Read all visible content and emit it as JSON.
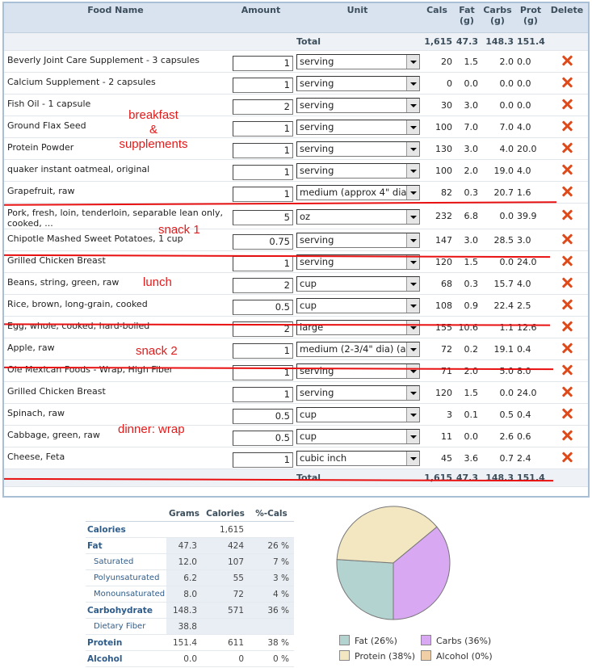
{
  "columns": {
    "food_name": "Food Name",
    "amount": "Amount",
    "unit": "Unit",
    "cals": "Cals",
    "fat": "Fat",
    "fat_unit": "(g)",
    "carbs": "Carbs",
    "carbs_unit": "(g)",
    "prot": "Prot",
    "prot_unit": "(g)",
    "delete": "Delete"
  },
  "total_top": {
    "label": "Total",
    "cals": "1,615",
    "fat": "47.3",
    "carbs": "148.3",
    "prot": "151.4"
  },
  "rows": [
    {
      "name": "Beverly Joint Care Supplement - 3 capsules",
      "amount": "1",
      "unit": "serving",
      "cals": "20",
      "fat": "1.5",
      "carbs": "2.0",
      "prot": "0.0"
    },
    {
      "name": "Calcium Supplement - 2 capsules",
      "amount": "1",
      "unit": "serving",
      "cals": "0",
      "fat": "0.0",
      "carbs": "0.0",
      "prot": "0.0"
    },
    {
      "name": "Fish Oil - 1 capsule",
      "amount": "2",
      "unit": "serving",
      "cals": "30",
      "fat": "3.0",
      "carbs": "0.0",
      "prot": "0.0"
    },
    {
      "name": "Ground Flax Seed",
      "amount": "1",
      "unit": "serving",
      "cals": "100",
      "fat": "7.0",
      "carbs": "7.0",
      "prot": "4.0"
    },
    {
      "name": "Protein Powder",
      "amount": "1",
      "unit": "serving",
      "cals": "130",
      "fat": "3.0",
      "carbs": "4.0",
      "prot": "20.0"
    },
    {
      "name": "quaker instant oatmeal, original",
      "amount": "1",
      "unit": "serving",
      "cals": "100",
      "fat": "2.0",
      "carbs": "19.0",
      "prot": "4.0"
    },
    {
      "name": "Grapefruit, raw",
      "amount": "1",
      "unit": "medium (approx 4\" dia",
      "cals": "82",
      "fat": "0.3",
      "carbs": "20.7",
      "prot": "1.6"
    },
    {
      "name": "Pork, fresh, loin, tenderloin, separable lean only, cooked, ...",
      "amount": "5",
      "unit": "oz",
      "cals": "232",
      "fat": "6.8",
      "carbs": "0.0",
      "prot": "39.9"
    },
    {
      "name": "Chipotle Mashed Sweet Potatoes, 1 cup",
      "amount": "0.75",
      "unit": "serving",
      "cals": "147",
      "fat": "3.0",
      "carbs": "28.5",
      "prot": "3.0"
    },
    {
      "name": "Grilled Chicken Breast",
      "amount": "1",
      "unit": "serving",
      "cals": "120",
      "fat": "1.5",
      "carbs": "0.0",
      "prot": "24.0"
    },
    {
      "name": "Beans, string, green, raw",
      "amount": "2",
      "unit": "cup",
      "cals": "68",
      "fat": "0.3",
      "carbs": "15.7",
      "prot": "4.0"
    },
    {
      "name": "Rice, brown, long-grain, cooked",
      "amount": "0.5",
      "unit": "cup",
      "cals": "108",
      "fat": "0.9",
      "carbs": "22.4",
      "prot": "2.5"
    },
    {
      "name": "Egg, whole, cooked, hard-boiled",
      "amount": "2",
      "unit": "large",
      "cals": "155",
      "fat": "10.6",
      "carbs": "1.1",
      "prot": "12.6"
    },
    {
      "name": "Apple, raw",
      "amount": "1",
      "unit": "medium (2-3/4\" dia) (a",
      "cals": "72",
      "fat": "0.2",
      "carbs": "19.1",
      "prot": "0.4"
    },
    {
      "name": "Ole Mexican Foods - Wrap, High Fiber",
      "amount": "1",
      "unit": "serving",
      "cals": "71",
      "fat": "2.0",
      "carbs": "5.0",
      "prot": "8.0"
    },
    {
      "name": "Grilled Chicken Breast",
      "amount": "1",
      "unit": "serving",
      "cals": "120",
      "fat": "1.5",
      "carbs": "0.0",
      "prot": "24.0"
    },
    {
      "name": "Spinach, raw",
      "amount": "0.5",
      "unit": "cup",
      "cals": "3",
      "fat": "0.1",
      "carbs": "0.5",
      "prot": "0.4"
    },
    {
      "name": "Cabbage, green, raw",
      "amount": "0.5",
      "unit": "cup",
      "cals": "11",
      "fat": "0.0",
      "carbs": "2.6",
      "prot": "0.6"
    },
    {
      "name": "Cheese, Feta",
      "amount": "1",
      "unit": "cubic inch",
      "cals": "45",
      "fat": "3.6",
      "carbs": "0.7",
      "prot": "2.4"
    }
  ],
  "total_bottom": {
    "label": "Total",
    "cals": "1,615",
    "fat": "47.3",
    "carbs": "148.3",
    "prot": "151.4"
  },
  "annotations": {
    "breakfast": "breakfast",
    "amp": "&",
    "supplements": "supplements",
    "snack1": "snack 1",
    "lunch": "lunch",
    "snack2": "snack 2",
    "dinner": "dinner: wrap"
  },
  "nutrition": {
    "headers": {
      "grams": "Grams",
      "calories": "Calories",
      "pct": "%-Cals"
    },
    "rows": [
      {
        "label": "Calories",
        "grams": "",
        "cal": "1,615",
        "pct": ""
      },
      {
        "label": "Fat",
        "grams": "47.3",
        "cal": "424",
        "pct": "26 %"
      },
      {
        "label": "Saturated",
        "grams": "12.0",
        "cal": "107",
        "pct": "7 %"
      },
      {
        "label": "Polyunsaturated",
        "grams": "6.2",
        "cal": "55",
        "pct": "3 %"
      },
      {
        "label": "Monounsaturated",
        "grams": "8.0",
        "cal": "72",
        "pct": "4 %"
      },
      {
        "label": "Carbohydrate",
        "grams": "148.3",
        "cal": "571",
        "pct": "36 %"
      },
      {
        "label": "Dietary Fiber",
        "grams": "38.8",
        "cal": "",
        "pct": ""
      },
      {
        "label": "Protein",
        "grams": "151.4",
        "cal": "611",
        "pct": "38 %"
      },
      {
        "label": "Alcohol",
        "grams": "0.0",
        "cal": "0",
        "pct": "0 %"
      }
    ]
  },
  "chart_data": {
    "type": "pie",
    "slices": [
      {
        "name": "Fat",
        "label": "Fat  (26%)",
        "value": 26,
        "color": "#b3d3d1"
      },
      {
        "name": "Carbs",
        "label": "Carbs  (36%)",
        "value": 36,
        "color": "#d8a8f2"
      },
      {
        "name": "Protein",
        "label": "Protein  (38%)",
        "value": 38,
        "color": "#f2e7c0"
      },
      {
        "name": "Alcohol",
        "label": "Alcohol  (0%)",
        "value": 0,
        "color": "#f1cfa6"
      }
    ]
  }
}
